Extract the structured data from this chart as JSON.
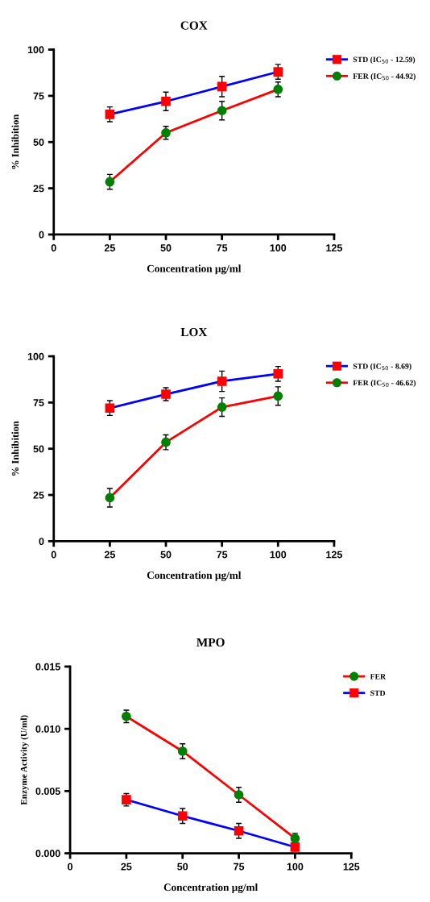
{
  "chart_data": [
    {
      "type": "line",
      "title": "COX",
      "xlabel": "Concentration µg/ml",
      "ylabel": "% Inhibition",
      "x": [
        25,
        50,
        75,
        100
      ],
      "xlim": [
        0,
        125
      ],
      "xticks": [
        0,
        25,
        50,
        75,
        100,
        125
      ],
      "ylim": [
        0,
        100
      ],
      "yticks": [
        0,
        25,
        50,
        75,
        100
      ],
      "grid": false,
      "legend": "top right",
      "series": [
        {
          "name": "STD (IC$_{50}$ - 12.59)",
          "color": "#0000ff",
          "colors": [
            "#ff0000",
            "#ff0000",
            "#ff0000",
            "#ff0000"
          ],
          "marker": "square",
          "values": [
            65,
            72,
            80,
            88
          ],
          "errors": [
            4,
            5,
            5.5,
            4
          ]
        },
        {
          "name": "FER (IC$_{50}$ - 44.92)",
          "color": "#ff0000",
          "colors": [
            "#008000",
            "#008000",
            "#008000",
            "#008000"
          ],
          "marker": "circle",
          "values": [
            28.5,
            55,
            67,
            78.5
          ],
          "errors": [
            4,
            3.5,
            5,
            4
          ]
        }
      ]
    },
    {
      "type": "line",
      "title": "LOX",
      "xlabel": "Concentration µg/ml",
      "ylabel": "% Inhibition",
      "x": [
        25,
        50,
        75,
        100
      ],
      "xlim": [
        0,
        125
      ],
      "xticks": [
        0,
        25,
        50,
        75,
        100,
        125
      ],
      "ylim": [
        0,
        100
      ],
      "yticks": [
        0,
        25,
        50,
        75,
        100
      ],
      "grid": false,
      "legend": "top right",
      "series": [
        {
          "name": "STD (IC$_{50}$ - 8.69)",
          "color": "#0000ff",
          "colors": [
            "#ff0000",
            "#ff0000",
            "#ff0000",
            "#ff0000"
          ],
          "marker": "square",
          "values": [
            72,
            79.5,
            86.5,
            90.5
          ],
          "errors": [
            4,
            3.5,
            5.5,
            4
          ]
        },
        {
          "name": "FER (IC$_{50}$ - 46.62)",
          "color": "#ff0000",
          "colors": [
            "#008000",
            "#008000",
            "#008000",
            "#008000"
          ],
          "marker": "circle",
          "values": [
            23.5,
            53.5,
            72.5,
            78.5
          ],
          "errors": [
            5,
            4,
            5,
            5
          ]
        }
      ]
    },
    {
      "type": "line",
      "title": "MPO",
      "xlabel": "Concentration µg/ml",
      "ylabel": "Enzyme Activity (U/ml)",
      "x": [
        25,
        50,
        75,
        100
      ],
      "xlim": [
        0,
        125
      ],
      "xticks": [
        0,
        25,
        50,
        75,
        100,
        125
      ],
      "ylim": [
        0,
        0.015
      ],
      "yticks": [
        {
          "value": 0,
          "label": "0.000"
        },
        {
          "value": 0.005,
          "label": "0.005"
        },
        {
          "value": 0.01,
          "label": "0.010"
        },
        {
          "value": 0.015,
          "label": "0.015"
        }
      ],
      "grid": false,
      "legend": "top right",
      "series": [
        {
          "name": "FER",
          "color": "#ff0000",
          "colors": [
            "#008000",
            "#008000",
            "#008000",
            "#008000"
          ],
          "marker": "circle",
          "values": [
            0.011,
            0.0082,
            0.0047,
            0.0012
          ],
          "errors": [
            0.0005,
            0.0006,
            0.0006,
            0.0004
          ]
        },
        {
          "name": "STD",
          "color": "#0000ff",
          "colors": [
            "#ff0000",
            "#ff0000",
            "#ff0000",
            "#ff0000"
          ],
          "marker": "square",
          "values": [
            0.0043,
            0.003,
            0.0018,
            0.0005
          ],
          "errors": [
            0.0005,
            0.0006,
            0.0006,
            0.0003
          ]
        }
      ]
    }
  ]
}
